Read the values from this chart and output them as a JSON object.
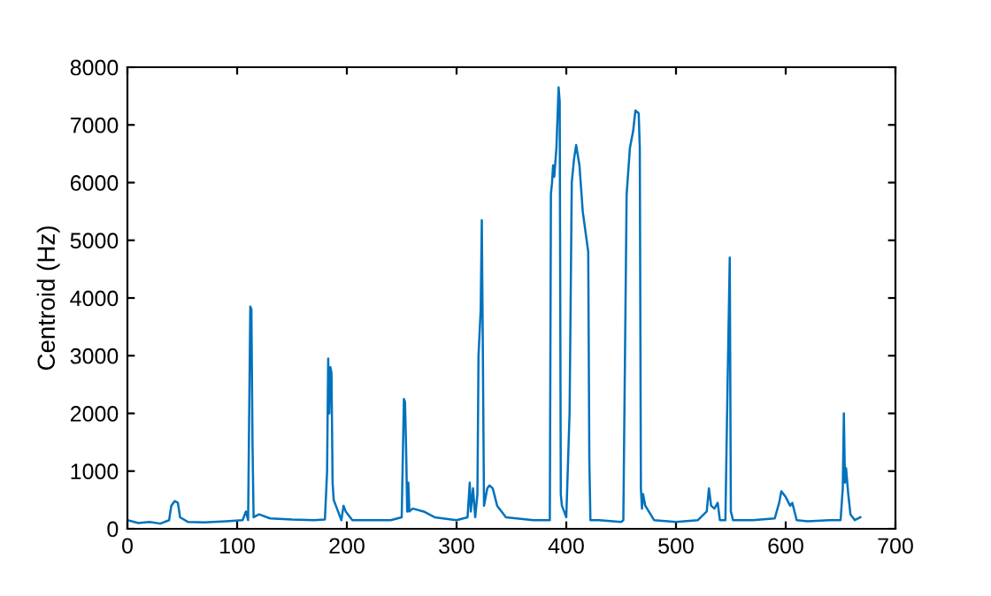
{
  "chart_data": {
    "type": "line",
    "ylabel": "Centroid (Hz)",
    "xlim": [
      0,
      700
    ],
    "xticks": [
      0,
      100,
      200,
      300,
      400,
      500,
      600,
      700
    ],
    "ylim": [
      0,
      8000
    ],
    "yticks": [
      0,
      1000,
      2000,
      3000,
      4000,
      5000,
      6000,
      7000,
      8000
    ],
    "grid": false,
    "marker": "none",
    "line_style": "solid",
    "x": [
      0,
      10,
      20,
      30,
      38,
      40,
      43,
      46,
      48,
      55,
      70,
      90,
      105,
      108,
      110,
      111,
      112,
      113,
      114,
      115,
      120,
      130,
      150,
      170,
      180,
      182,
      183,
      184,
      185,
      186,
      187,
      188,
      190,
      192,
      195,
      197,
      199,
      205,
      220,
      240,
      250,
      252,
      253,
      254,
      255,
      256,
      257,
      260,
      270,
      280,
      300,
      310,
      312,
      313,
      315,
      317,
      319,
      320,
      322,
      323,
      324,
      325,
      328,
      330,
      333,
      337,
      345,
      370,
      380,
      385,
      386,
      387,
      388,
      389,
      391,
      393,
      394,
      395,
      396,
      398,
      400,
      403,
      405,
      407,
      409,
      412,
      415,
      420,
      421,
      422,
      430,
      450,
      452,
      455,
      458,
      461,
      463,
      466,
      467,
      468,
      469,
      470,
      472,
      480,
      500,
      520,
      528,
      530,
      532,
      535,
      538,
      540,
      545,
      547,
      549,
      550,
      552,
      570,
      590,
      594,
      596,
      600,
      604,
      606,
      610,
      620,
      640,
      650,
      652,
      653,
      654,
      655,
      657,
      659,
      663,
      668
    ],
    "series": [
      {
        "color": "#0072bd",
        "values": [
          150,
          100,
          120,
          90,
          150,
          400,
          480,
          450,
          200,
          120,
          110,
          130,
          150,
          300,
          150,
          2000,
          3850,
          3800,
          1500,
          200,
          250,
          180,
          160,
          150,
          160,
          1000,
          2950,
          2000,
          2800,
          2700,
          800,
          500,
          400,
          300,
          150,
          400,
          300,
          150,
          150,
          150,
          200,
          2250,
          2200,
          1400,
          300,
          800,
          300,
          350,
          300,
          200,
          150,
          200,
          800,
          300,
          700,
          200,
          600,
          3000,
          3800,
          5350,
          3000,
          400,
          700,
          750,
          700,
          400,
          200,
          150,
          150,
          150,
          5800,
          6000,
          6300,
          6100,
          6600,
          7650,
          7400,
          600,
          400,
          300,
          200,
          2000,
          6000,
          6400,
          6650,
          6300,
          5500,
          4800,
          1200,
          150,
          150,
          120,
          150,
          5800,
          6600,
          6900,
          7250,
          7200,
          6600,
          700,
          350,
          600,
          400,
          150,
          120,
          150,
          300,
          700,
          400,
          350,
          450,
          150,
          150,
          2500,
          4700,
          300,
          150,
          150,
          180,
          450,
          650,
          550,
          400,
          450,
          150,
          130,
          150,
          150,
          700,
          2000,
          800,
          1050,
          600,
          250,
          150,
          200
        ]
      }
    ]
  }
}
